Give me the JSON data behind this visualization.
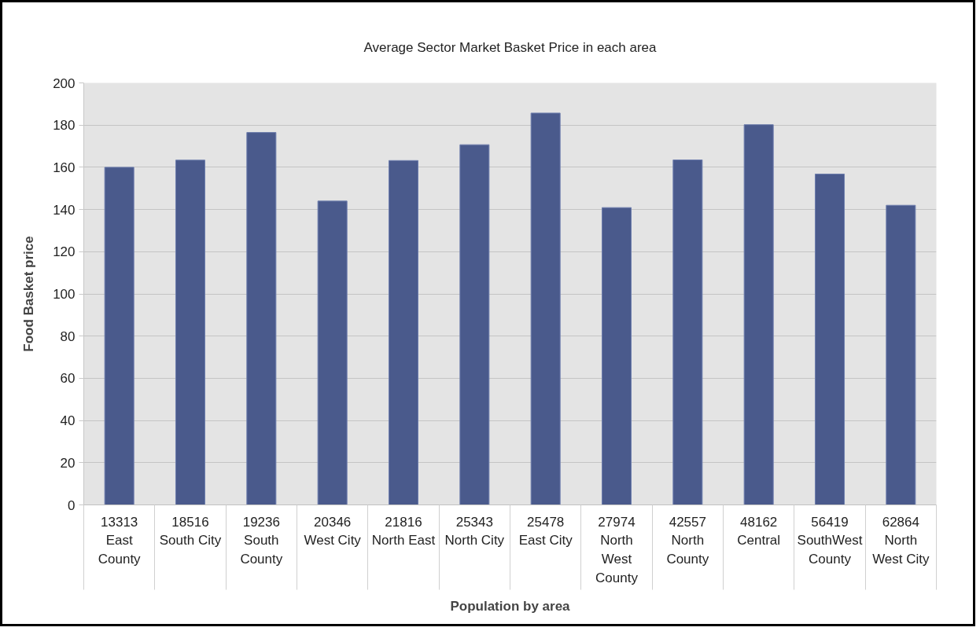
{
  "chart_data": {
    "type": "bar",
    "title": "Average Sector Market Basket Price in each area",
    "xlabel": "Population by area",
    "ylabel": "Food Basket price",
    "categories": [
      "13313\nEast\nCounty",
      "18516\nSouth City",
      "19236\nSouth\nCounty",
      "20346\nWest City",
      "21816\nNorth East",
      "25343\nNorth City",
      "25478\nEast City",
      "27974\nNorth\nWest\nCounty",
      "42557\nNorth\nCounty",
      "48162\nCentral",
      "56419\nSouthWest\nCounty",
      "62864\nNorth\nWest City"
    ],
    "values": [
      160,
      163.4,
      176.5,
      144,
      163.2,
      170.7,
      185.7,
      140.9,
      163.5,
      180.2,
      156.8,
      142
    ],
    "color": "#4a5a8c",
    "ylim": [
      0,
      200
    ],
    "yticks": [
      0,
      20,
      40,
      60,
      80,
      100,
      120,
      140,
      160,
      180,
      200
    ],
    "grid": "y"
  }
}
